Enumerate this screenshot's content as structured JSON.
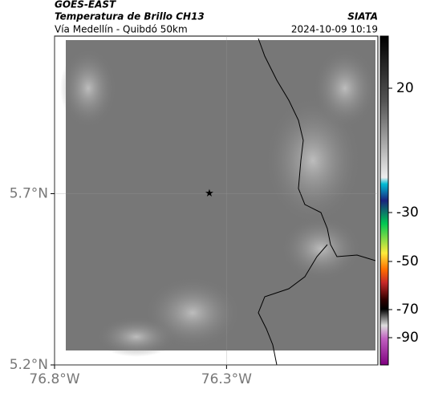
{
  "header": {
    "title": "GOES-EAST",
    "subtitle": "Temperatura de Brillo CH13",
    "region": "Vía Medellín - Quibdó 50km",
    "source": "SIATA",
    "datetime": "2024-10-09 10:19"
  },
  "map": {
    "xlim": [
      -76.8,
      -75.86
    ],
    "ylim": [
      5.2,
      6.16
    ],
    "xticks": [
      {
        "value": -76.8,
        "label": "76.8°W"
      },
      {
        "value": -76.3,
        "label": "76.3°W"
      }
    ],
    "yticks": [
      {
        "value": 5.7,
        "label": "5.7°N"
      },
      {
        "value": 5.2,
        "label": "5.2°N"
      }
    ],
    "marker": {
      "lon": -76.35,
      "lat": 5.7
    }
  },
  "colorbar": {
    "ticks": [
      20,
      -30,
      -50,
      -70,
      -90
    ]
  }
}
